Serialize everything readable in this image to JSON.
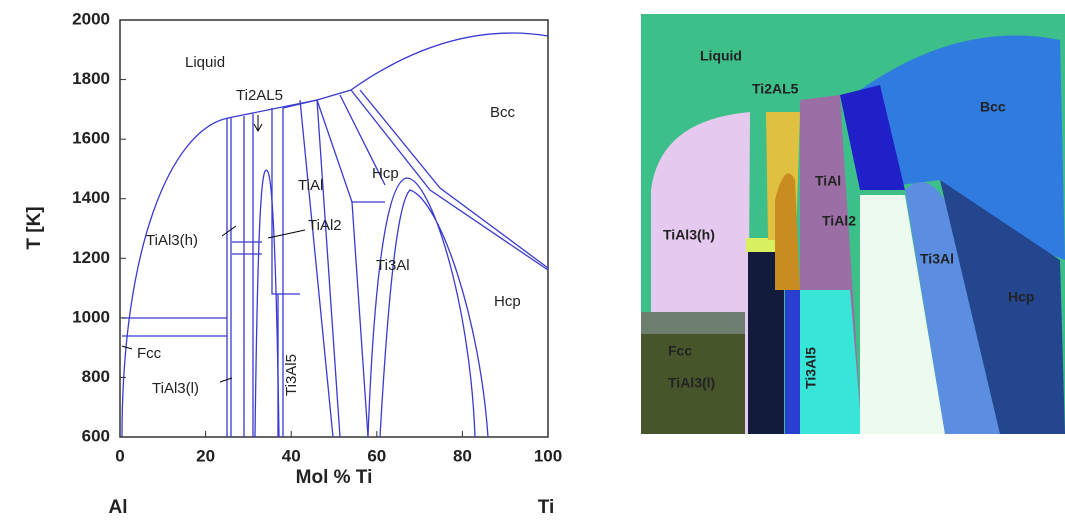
{
  "left_panel": {
    "y_axis_title": "T [K]",
    "x_axis_title": "Mol % Ti",
    "x_end_left": "Al",
    "x_end_right": "Ti",
    "yticks": [
      2000,
      1800,
      1600,
      1400,
      1200,
      1000,
      800,
      600
    ],
    "xticks": [
      0,
      20,
      40,
      60,
      80,
      100
    ],
    "labels": [
      "Liquid",
      "Ti2AL5",
      "Bcc",
      "TiAl",
      "Hcp",
      "TiAl3(h)",
      "TiAl2",
      "Ti3Al",
      "Hcp",
      "Fcc",
      "TiAl3(l)",
      "Ti3Al5"
    ]
  },
  "right_panel": {
    "labels": [
      "Liquid",
      "Ti2AL5",
      "Bcc",
      "TiAl",
      "TiAl2",
      "TiAl3(h)",
      "Ti3Al",
      "Hcp",
      "Fcc",
      "TiAl3(l)",
      "Ti3Al5"
    ]
  }
}
